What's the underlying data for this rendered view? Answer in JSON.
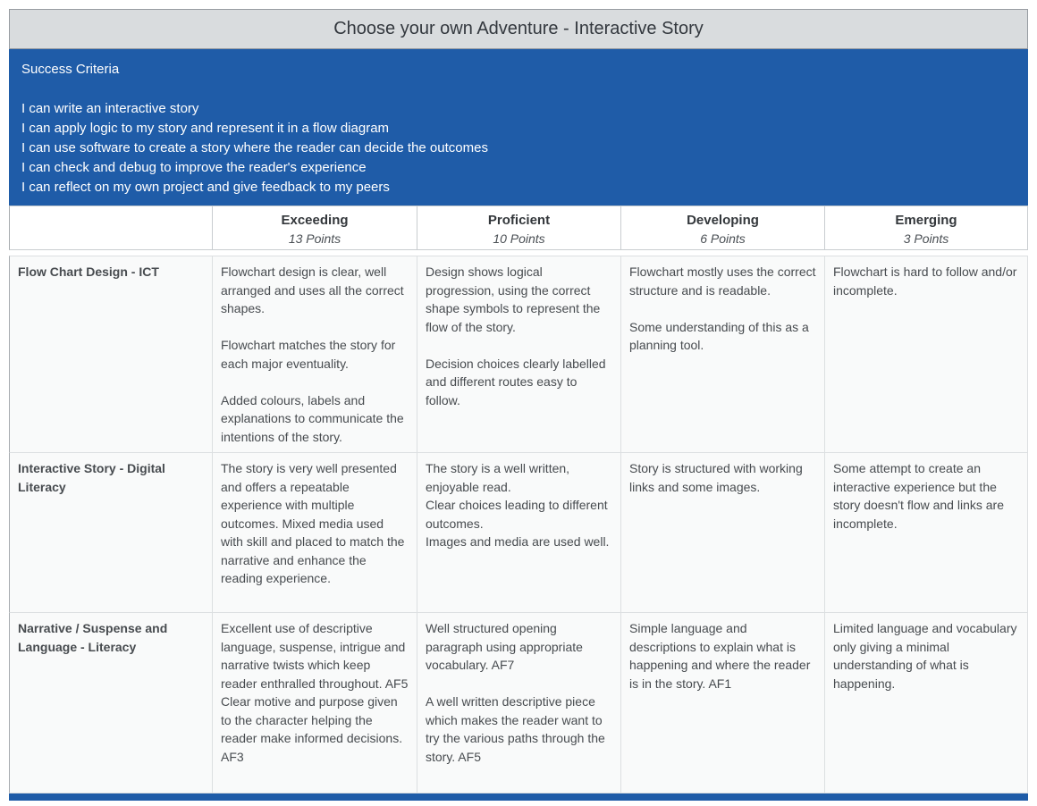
{
  "page": {
    "title": "Choose your own Adventure - Interactive Story"
  },
  "success_criteria": {
    "heading": "Success Criteria",
    "items": [
      "I can write an interactive story",
      "I can apply logic to my story and represent it in a flow diagram",
      "I can use software to create a story where the reader can decide the outcomes",
      "I can check and debug to improve the reader's experience",
      "I can reflect on my own project and give feedback to my peers"
    ]
  },
  "rubric": {
    "levels": [
      {
        "label": "Exceeding",
        "points": "13 Points"
      },
      {
        "label": "Proficient",
        "points": "10 Points"
      },
      {
        "label": "Developing",
        "points": "6 Points"
      },
      {
        "label": "Emerging",
        "points": "3 Points"
      }
    ],
    "rows": [
      {
        "criterion": "Flow Chart Design - ICT",
        "cells": [
          "Flowchart design is clear, well arranged and uses all the correct shapes.\n\nFlowchart matches the story for each major eventuality.\n\nAdded colours, labels and explanations to communicate the intentions of the story.",
          "Design shows logical progression, using the correct shape symbols to represent the flow of the story.\n\nDecision choices clearly labelled and different routes easy to follow.",
          "Flowchart mostly uses the correct structure and is readable.\n\nSome understanding of this as a planning tool.",
          "Flowchart is hard to follow and/or incomplete."
        ]
      },
      {
        "criterion": "Interactive Story - Digital Literacy",
        "cells": [
          "The story is very well presented and offers a repeatable experience with multiple outcomes. Mixed media used with skill and placed to match the narrative and enhance the reading experience.",
          "The story is a well written, enjoyable read.\nClear choices leading to different outcomes.\nImages and media are used well.",
          "Story is structured with working links and some images.",
          "Some attempt to create an interactive experience but the story doesn't flow and links are incomplete."
        ]
      },
      {
        "criterion": "Narrative / Suspense and Language - Literacy",
        "cells": [
          "Excellent use of descriptive language, suspense, intrigue and narrative twists which keep reader enthralled throughout. AF5\nClear motive and purpose given to the character helping the reader make informed decisions. AF3",
          "Well structured opening paragraph using appropriate vocabulary. AF7\n\nA well written descriptive piece which makes the reader want to try the various paths through the story. AF5",
          "Simple language and descriptions to explain what is happening and where the reader is in the story. AF1",
          "Limited language and vocabulary only giving a minimal understanding of what is happening."
        ]
      }
    ],
    "colors": {
      "accent_blue": "#1f5ca8",
      "title_bar_bg": "#d9dcde",
      "cell_bg": "#f9fafa",
      "grid_line": "#dcdfe1"
    }
  }
}
